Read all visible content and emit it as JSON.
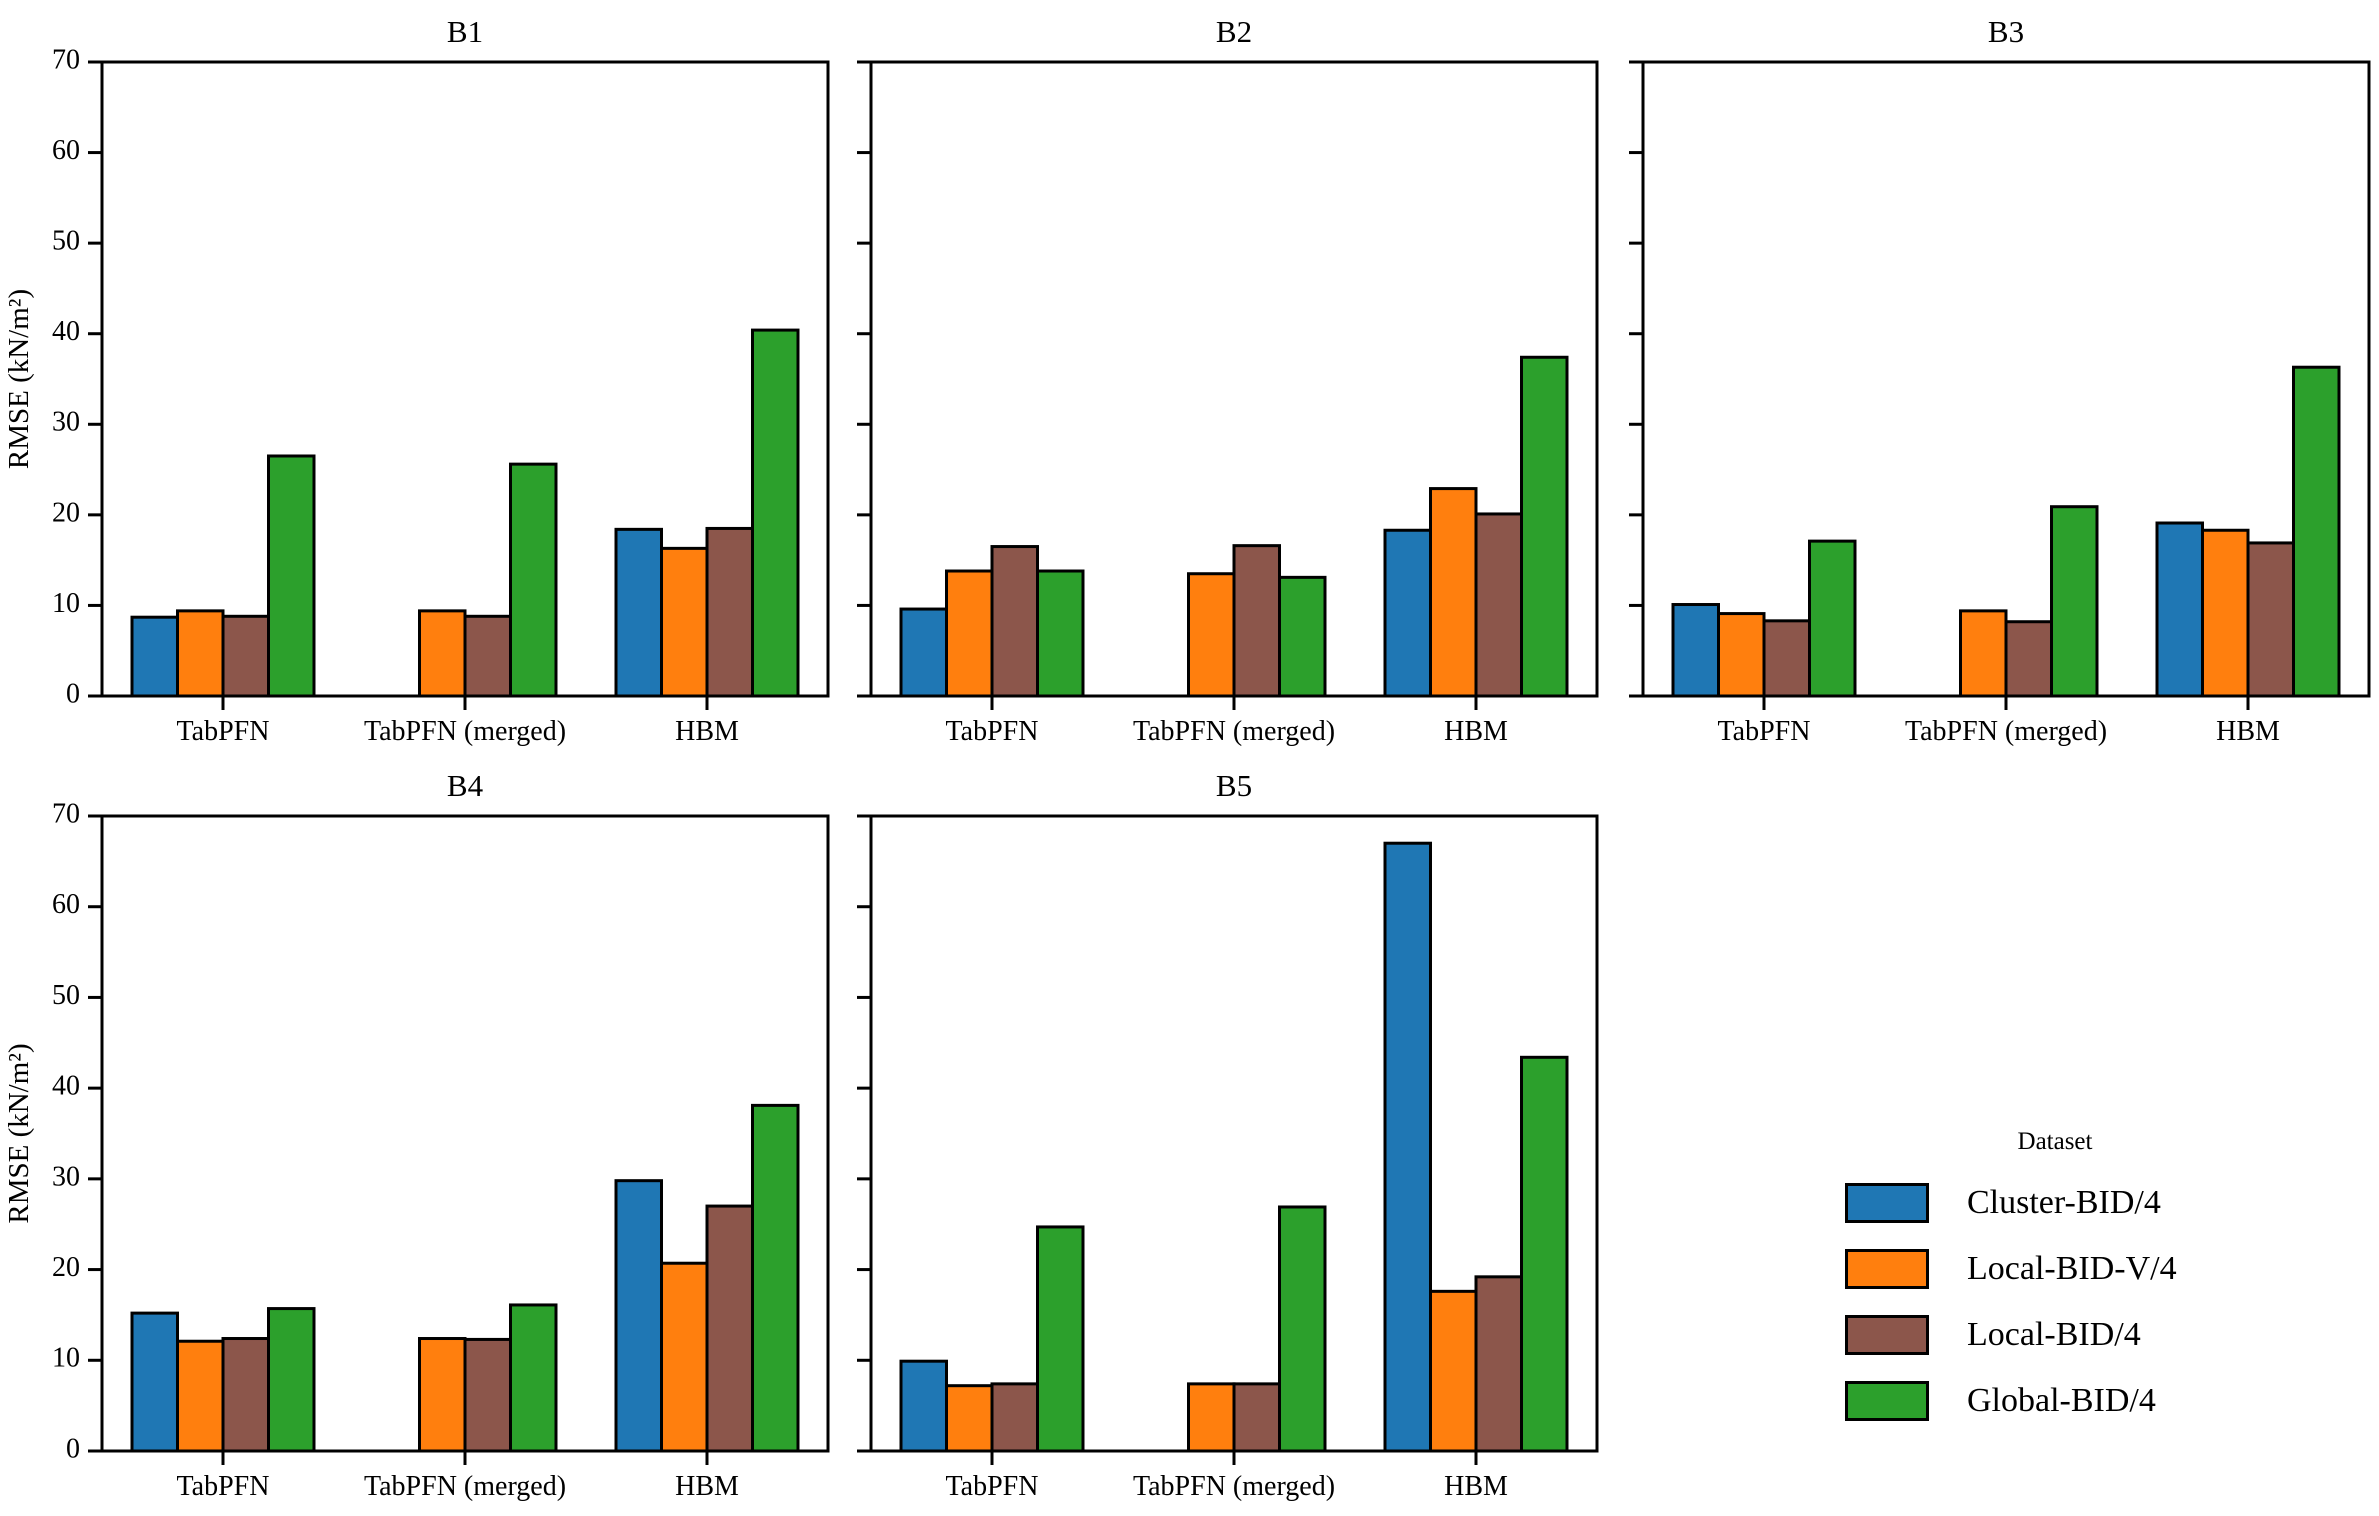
{
  "figure": {
    "ylabel": "RMSE (kN/m²)",
    "background": "#ffffff",
    "legend": {
      "title": "Dataset",
      "position": "lower-right-outside",
      "entries": [
        {
          "label": "Cluster-BID/4",
          "color": "#1f77b4"
        },
        {
          "label": "Local-BID-V/4",
          "color": "#ff7f0e"
        },
        {
          "label": "Local-BID/4",
          "color": "#8c564b"
        },
        {
          "label": "Global-BID/4",
          "color": "#2ca02c"
        }
      ]
    }
  },
  "chart_data": [
    {
      "type": "bar",
      "title": "B1",
      "categories": [
        "TabPFN",
        "TabPFN (merged)",
        "HBM"
      ],
      "series": [
        {
          "name": "Cluster-BID/4",
          "values": [
            8.7,
            null,
            18.4
          ]
        },
        {
          "name": "Local-BID-V/4",
          "values": [
            9.4,
            9.4,
            16.3
          ]
        },
        {
          "name": "Local-BID/4",
          "values": [
            8.8,
            8.8,
            18.5
          ]
        },
        {
          "name": "Global-BID/4",
          "values": [
            26.5,
            25.6,
            40.4
          ]
        }
      ],
      "xlabel": "",
      "ylabel": "RMSE (kN/m²)",
      "ylim": [
        0,
        70
      ],
      "yticks": [
        0,
        10,
        20,
        30,
        40,
        50,
        60,
        70
      ],
      "grid": false,
      "show_ytick_labels": true
    },
    {
      "type": "bar",
      "title": "B2",
      "categories": [
        "TabPFN",
        "TabPFN (merged)",
        "HBM"
      ],
      "series": [
        {
          "name": "Cluster-BID/4",
          "values": [
            9.6,
            null,
            18.3
          ]
        },
        {
          "name": "Local-BID-V/4",
          "values": [
            13.8,
            13.5,
            22.9
          ]
        },
        {
          "name": "Local-BID/4",
          "values": [
            16.5,
            16.6,
            20.1
          ]
        },
        {
          "name": "Global-BID/4",
          "values": [
            13.8,
            13.1,
            37.4
          ]
        }
      ],
      "xlabel": "",
      "ylabel": "",
      "ylim": [
        0,
        70
      ],
      "yticks": [
        0,
        10,
        20,
        30,
        40,
        50,
        60,
        70
      ],
      "grid": false,
      "show_ytick_labels": false
    },
    {
      "type": "bar",
      "title": "B3",
      "categories": [
        "TabPFN",
        "TabPFN (merged)",
        "HBM"
      ],
      "series": [
        {
          "name": "Cluster-BID/4",
          "values": [
            10.1,
            null,
            19.1
          ]
        },
        {
          "name": "Local-BID-V/4",
          "values": [
            9.1,
            9.4,
            18.3
          ]
        },
        {
          "name": "Local-BID/4",
          "values": [
            8.3,
            8.2,
            16.9
          ]
        },
        {
          "name": "Global-BID/4",
          "values": [
            17.1,
            20.9,
            36.3
          ]
        }
      ],
      "xlabel": "",
      "ylabel": "",
      "ylim": [
        0,
        70
      ],
      "yticks": [
        0,
        10,
        20,
        30,
        40,
        50,
        60,
        70
      ],
      "grid": false,
      "show_ytick_labels": false
    },
    {
      "type": "bar",
      "title": "B4",
      "categories": [
        "TabPFN",
        "TabPFN (merged)",
        "HBM"
      ],
      "series": [
        {
          "name": "Cluster-BID/4",
          "values": [
            15.2,
            null,
            29.8
          ]
        },
        {
          "name": "Local-BID-V/4",
          "values": [
            12.1,
            12.4,
            20.7
          ]
        },
        {
          "name": "Local-BID/4",
          "values": [
            12.4,
            12.3,
            27.0
          ]
        },
        {
          "name": "Global-BID/4",
          "values": [
            15.7,
            16.1,
            38.1
          ]
        }
      ],
      "xlabel": "",
      "ylabel": "RMSE (kN/m²)",
      "ylim": [
        0,
        70
      ],
      "yticks": [
        0,
        10,
        20,
        30,
        40,
        50,
        60,
        70
      ],
      "grid": false,
      "show_ytick_labels": true
    },
    {
      "type": "bar",
      "title": "B5",
      "categories": [
        "TabPFN",
        "TabPFN (merged)",
        "HBM"
      ],
      "series": [
        {
          "name": "Cluster-BID/4",
          "values": [
            9.9,
            null,
            67.0
          ]
        },
        {
          "name": "Local-BID-V/4",
          "values": [
            7.2,
            7.4,
            17.6
          ]
        },
        {
          "name": "Local-BID/4",
          "values": [
            7.4,
            7.4,
            19.2
          ]
        },
        {
          "name": "Global-BID/4",
          "values": [
            24.7,
            26.9,
            43.4
          ]
        }
      ],
      "xlabel": "",
      "ylabel": "",
      "ylim": [
        0,
        70
      ],
      "yticks": [
        0,
        10,
        20,
        30,
        40,
        50,
        60,
        70
      ],
      "grid": false,
      "show_ytick_labels": false
    }
  ]
}
